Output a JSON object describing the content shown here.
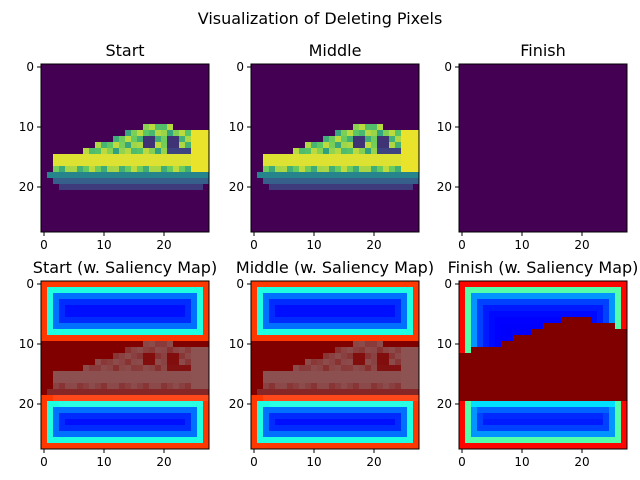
{
  "figure": {
    "suptitle": "Visualization of Deleting Pixels"
  },
  "chart_data": [
    {
      "type": "heatmap",
      "title": "Start",
      "colormap": "viridis",
      "image_size": [
        28,
        28
      ],
      "content": "shoe-grayscale",
      "xticks": [
        0,
        10,
        20
      ],
      "yticks": [
        0,
        10,
        20
      ],
      "xlim": [
        0,
        27
      ],
      "ylim": [
        27,
        0
      ]
    },
    {
      "type": "heatmap",
      "title": "Middle",
      "colormap": "viridis",
      "image_size": [
        28,
        28
      ],
      "content": "shoe-grayscale",
      "xticks": [
        0,
        10,
        20
      ],
      "yticks": [
        0,
        10,
        20
      ],
      "xlim": [
        0,
        27
      ],
      "ylim": [
        27,
        0
      ]
    },
    {
      "type": "heatmap",
      "title": "Finish",
      "colormap": "viridis",
      "image_size": [
        28,
        28
      ],
      "content": "all-zero",
      "xticks": [
        0,
        10,
        20
      ],
      "yticks": [
        0,
        10,
        20
      ],
      "xlim": [
        0,
        27
      ],
      "ylim": [
        27,
        0
      ]
    },
    {
      "type": "heatmap",
      "title": "Start (w. Saliency Map)",
      "colormap": "jet",
      "image_size": [
        28,
        28
      ],
      "content": "shoe-saliency-overlay",
      "xticks": [
        0,
        10,
        20
      ],
      "yticks": [
        0,
        10,
        20
      ],
      "xlim": [
        0,
        27
      ],
      "ylim": [
        27,
        0
      ]
    },
    {
      "type": "heatmap",
      "title": "Middle (w. Saliency Map)",
      "colormap": "jet",
      "image_size": [
        28,
        28
      ],
      "content": "shoe-saliency-overlay",
      "xticks": [
        0,
        10,
        20
      ],
      "yticks": [
        0,
        10,
        20
      ],
      "xlim": [
        0,
        27
      ],
      "ylim": [
        27,
        0
      ]
    },
    {
      "type": "heatmap",
      "title": "Finish (w. Saliency Map)",
      "colormap": "jet",
      "image_size": [
        28,
        28
      ],
      "content": "saliency-only",
      "xticks": [
        0,
        10,
        20
      ],
      "yticks": [
        0,
        10,
        20
      ],
      "xlim": [
        0,
        27
      ],
      "ylim": [
        27,
        0
      ]
    }
  ]
}
